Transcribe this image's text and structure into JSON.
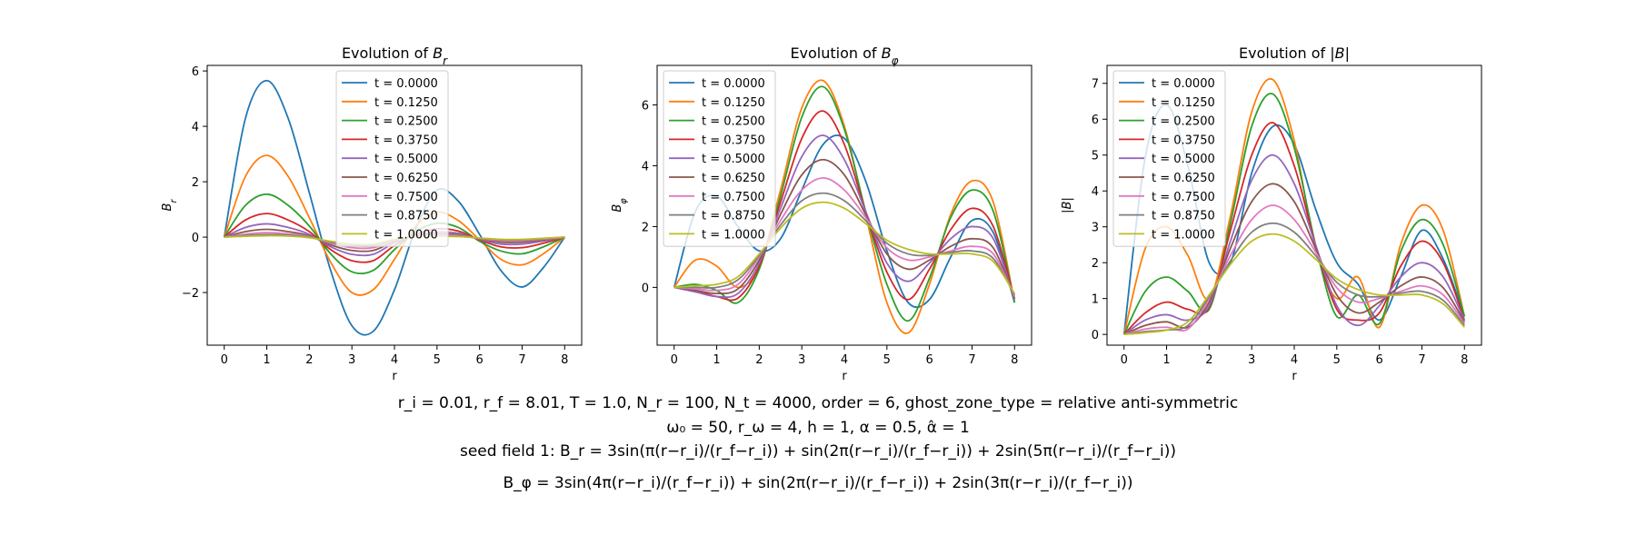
{
  "captions": {
    "line1": "r_i = 0.01, r_f = 8.01, T = 1.0, N_r = 100, N_t = 4000, order = 6, ghost_zone_type = relative anti-symmetric",
    "line2": "ω₀ = 50, r_ω = 4, h = 1, α = 0.5, α̂ = 1",
    "line3": "seed field 1: B_r = 3sin(π(r−r_i)/(r_f−r_i)) + sin(2π(r−r_i)/(r_f−r_i)) + 2sin(5π(r−r_i)/(r_f−r_i))",
    "line4": "B_φ = 3sin(4π(r−r_i)/(r_f−r_i)) + sin(2π(r−r_i)/(r_f−r_i)) + 2sin(3π(r−r_i)/(r_f−r_i))"
  },
  "legend_entries": [
    "t = 0.0000",
    "t = 0.1250",
    "t = 0.2500",
    "t = 0.3750",
    "t = 0.5000",
    "t = 0.6250",
    "t = 0.7500",
    "t = 0.8750",
    "t = 1.0000"
  ],
  "series_colors": [
    "#1f77b4",
    "#ff7f0e",
    "#2ca02c",
    "#d62728",
    "#9467bd",
    "#8c564b",
    "#e377c2",
    "#7f7f7f",
    "#bcbd22"
  ],
  "chart_data": [
    {
      "type": "line",
      "title": "Evolution of B_r",
      "xlabel": "r",
      "ylabel": "B_r",
      "xlim": [
        -0.4,
        8.4
      ],
      "ylim": [
        -3.9,
        6.2
      ],
      "xticks": [
        0,
        1,
        2,
        3,
        4,
        5,
        6,
        7,
        8
      ],
      "yticks": [
        -2,
        0,
        2,
        4,
        6
      ],
      "legend": "top-center",
      "x": [
        0,
        0.5,
        1,
        1.5,
        2,
        2.5,
        3,
        3.5,
        4,
        4.5,
        5,
        5.5,
        6,
        6.5,
        7,
        7.5,
        8
      ],
      "series": [
        {
          "name": "t = 0.0000",
          "values": [
            0,
            4.3,
            5.65,
            4.3,
            1.6,
            -1.2,
            -3.2,
            -3.4,
            -1.9,
            0.3,
            1.7,
            1.3,
            0.1,
            -1.2,
            -1.8,
            -1.1,
            0
          ]
        },
        {
          "name": "t = 0.1250",
          "values": [
            0,
            2.2,
            2.95,
            2.2,
            0.7,
            -0.9,
            -2.0,
            -1.9,
            -0.8,
            0.4,
            0.9,
            0.6,
            -0.1,
            -0.8,
            -1.0,
            -0.6,
            0
          ]
        },
        {
          "name": "t = 0.2500",
          "values": [
            0,
            1.15,
            1.55,
            1.15,
            0.4,
            -0.6,
            -1.25,
            -1.2,
            -0.45,
            0.2,
            0.5,
            0.35,
            -0.15,
            -0.5,
            -0.6,
            -0.35,
            0
          ]
        },
        {
          "name": "t = 0.3750",
          "values": [
            0,
            0.62,
            0.85,
            0.62,
            0.2,
            -0.45,
            -0.85,
            -0.85,
            -0.3,
            0.1,
            0.3,
            0.22,
            -0.1,
            -0.35,
            -0.38,
            -0.22,
            0
          ]
        },
        {
          "name": "t = 0.5000",
          "values": [
            0,
            0.35,
            0.48,
            0.35,
            0.1,
            -0.35,
            -0.62,
            -0.62,
            -0.2,
            0.05,
            0.18,
            0.14,
            -0.08,
            -0.25,
            -0.25,
            -0.14,
            0
          ]
        },
        {
          "name": "t = 0.6250",
          "values": [
            0,
            0.2,
            0.28,
            0.2,
            0.05,
            -0.28,
            -0.48,
            -0.48,
            -0.15,
            0.03,
            0.11,
            0.09,
            -0.06,
            -0.18,
            -0.18,
            -0.1,
            0
          ]
        },
        {
          "name": "t = 0.7500",
          "values": [
            0,
            0.11,
            0.16,
            0.12,
            0.02,
            -0.22,
            -0.38,
            -0.38,
            -0.12,
            0.02,
            0.07,
            0.06,
            -0.05,
            -0.13,
            -0.13,
            -0.07,
            0
          ]
        },
        {
          "name": "t = 0.8750",
          "values": [
            0,
            0.06,
            0.09,
            0.07,
            0.0,
            -0.18,
            -0.3,
            -0.3,
            -0.1,
            0.01,
            0.04,
            0.04,
            -0.04,
            -0.1,
            -0.1,
            -0.05,
            0
          ]
        },
        {
          "name": "t = 1.0000",
          "values": [
            0,
            0.03,
            0.05,
            0.04,
            -0.02,
            -0.15,
            -0.25,
            -0.25,
            -0.08,
            0.0,
            0.03,
            0.02,
            -0.03,
            -0.08,
            -0.08,
            -0.04,
            0
          ]
        }
      ]
    },
    {
      "type": "line",
      "title": "Evolution of B_φ",
      "xlabel": "r",
      "ylabel": "B_φ",
      "xlim": [
        -0.4,
        8.4
      ],
      "ylim": [
        -1.9,
        7.3
      ],
      "xticks": [
        0,
        1,
        2,
        3,
        4,
        5,
        6,
        7,
        8
      ],
      "yticks": [
        0,
        2,
        4,
        6
      ],
      "legend": "top-left",
      "x": [
        0,
        0.5,
        1,
        1.5,
        2,
        2.5,
        3,
        3.5,
        4,
        4.5,
        5,
        5.5,
        6,
        6.5,
        7,
        7.5,
        8
      ],
      "series": [
        {
          "name": "t = 0.0000",
          "values": [
            0,
            2.5,
            3.0,
            2.0,
            1.2,
            1.6,
            3.2,
            4.7,
            4.9,
            3.5,
            1.2,
            -0.5,
            -0.4,
            1.0,
            2.2,
            1.8,
            -0.5
          ]
        },
        {
          "name": "t = 0.1250",
          "values": [
            0,
            0.9,
            0.7,
            0.0,
            0.7,
            3.2,
            5.9,
            6.8,
            5.3,
            2.4,
            -0.5,
            -1.5,
            0.1,
            2.4,
            3.5,
            2.8,
            -0.5
          ]
        },
        {
          "name": "t = 0.2500",
          "values": [
            0,
            0.1,
            -0.1,
            -0.5,
            0.6,
            3.0,
            5.6,
            6.6,
            5.2,
            2.5,
            0.1,
            -1.1,
            0.3,
            2.3,
            3.2,
            2.5,
            -0.5
          ]
        },
        {
          "name": "t = 0.3750",
          "values": [
            0,
            -0.1,
            -0.3,
            -0.35,
            0.7,
            2.8,
            4.9,
            5.8,
            4.7,
            2.5,
            0.5,
            -0.4,
            0.6,
            1.9,
            2.6,
            2.0,
            -0.4
          ]
        },
        {
          "name": "t = 0.5000",
          "values": [
            0,
            -0.15,
            -0.3,
            -0.2,
            0.8,
            2.6,
            4.3,
            5.0,
            4.2,
            2.5,
            0.8,
            0.2,
            0.8,
            1.6,
            2.0,
            1.6,
            -0.4
          ]
        },
        {
          "name": "t = 0.6250",
          "values": [
            0,
            -0.1,
            -0.2,
            -0.05,
            0.9,
            2.4,
            3.7,
            4.2,
            3.7,
            2.4,
            1.1,
            0.6,
            0.9,
            1.35,
            1.6,
            1.3,
            -0.35
          ]
        },
        {
          "name": "t = 0.7500",
          "values": [
            0,
            -0.05,
            -0.1,
            0.1,
            1.0,
            2.2,
            3.2,
            3.6,
            3.2,
            2.3,
            1.3,
            0.9,
            1.0,
            1.2,
            1.35,
            1.1,
            -0.3
          ]
        },
        {
          "name": "t = 0.8750",
          "values": [
            0,
            0.0,
            0.0,
            0.25,
            1.05,
            2.05,
            2.85,
            3.1,
            2.85,
            2.2,
            1.45,
            1.1,
            1.05,
            1.15,
            1.2,
            0.95,
            -0.25
          ]
        },
        {
          "name": "t = 1.0000",
          "values": [
            0,
            0.05,
            0.1,
            0.35,
            1.1,
            1.95,
            2.6,
            2.8,
            2.6,
            2.1,
            1.55,
            1.25,
            1.1,
            1.1,
            1.1,
            0.85,
            -0.2
          ]
        }
      ]
    },
    {
      "type": "line",
      "title": "Evolution of |B|",
      "xlabel": "r",
      "ylabel": "|B|",
      "xlim": [
        -0.4,
        8.4
      ],
      "ylim": [
        -0.3,
        7.5
      ],
      "xticks": [
        0,
        1,
        2,
        3,
        4,
        5,
        6,
        7,
        8
      ],
      "yticks": [
        0,
        1,
        2,
        3,
        4,
        5,
        6,
        7
      ],
      "legend": "top-left",
      "x": [
        0,
        0.5,
        1,
        1.5,
        2,
        2.5,
        3,
        3.5,
        4,
        4.5,
        5,
        5.5,
        6,
        6.5,
        7,
        7.5,
        8
      ],
      "series": [
        {
          "name": "t = 0.0000",
          "values": [
            0,
            4.95,
            6.4,
            4.7,
            2.0,
            2.0,
            4.5,
            5.8,
            5.3,
            3.5,
            2.0,
            1.4,
            0.4,
            1.6,
            2.9,
            2.1,
            0.5
          ]
        },
        {
          "name": "t = 0.1250",
          "values": [
            0,
            2.4,
            3.0,
            2.2,
            1.0,
            3.3,
            6.2,
            7.1,
            5.4,
            2.4,
            1.0,
            1.6,
            0.2,
            2.5,
            3.6,
            2.9,
            0.5
          ]
        },
        {
          "name": "t = 0.2500",
          "values": [
            0,
            1.2,
            1.6,
            1.2,
            0.7,
            3.1,
            5.8,
            6.7,
            5.2,
            2.5,
            0.5,
            1.1,
            0.3,
            2.3,
            3.2,
            2.5,
            0.5
          ]
        },
        {
          "name": "t = 0.3750",
          "values": [
            0,
            0.6,
            0.9,
            0.7,
            0.75,
            2.9,
            5.0,
            5.9,
            4.7,
            2.5,
            0.7,
            0.4,
            0.6,
            1.9,
            2.6,
            2.0,
            0.4
          ]
        },
        {
          "name": "t = 0.5000",
          "values": [
            0,
            0.4,
            0.55,
            0.4,
            0.8,
            2.6,
            4.3,
            5.0,
            4.2,
            2.5,
            0.8,
            0.25,
            0.8,
            1.6,
            2.0,
            1.6,
            0.4
          ]
        },
        {
          "name": "t = 0.6250",
          "values": [
            0,
            0.25,
            0.35,
            0.2,
            0.9,
            2.4,
            3.7,
            4.2,
            3.7,
            2.4,
            1.1,
            0.6,
            0.9,
            1.35,
            1.6,
            1.3,
            0.35
          ]
        },
        {
          "name": "t = 0.7500",
          "values": [
            0,
            0.15,
            0.2,
            0.15,
            1.0,
            2.2,
            3.2,
            3.6,
            3.2,
            2.3,
            1.3,
            0.9,
            1.0,
            1.2,
            1.35,
            1.1,
            0.3
          ]
        },
        {
          "name": "t = 0.8750",
          "values": [
            0,
            0.08,
            0.12,
            0.25,
            1.05,
            2.05,
            2.85,
            3.1,
            2.85,
            2.2,
            1.45,
            1.1,
            1.05,
            1.15,
            1.2,
            0.95,
            0.25
          ]
        },
        {
          "name": "t = 1.0000",
          "values": [
            0,
            0.05,
            0.12,
            0.35,
            1.1,
            1.95,
            2.6,
            2.8,
            2.6,
            2.1,
            1.55,
            1.25,
            1.1,
            1.1,
            1.1,
            0.85,
            0.2
          ]
        }
      ]
    }
  ]
}
